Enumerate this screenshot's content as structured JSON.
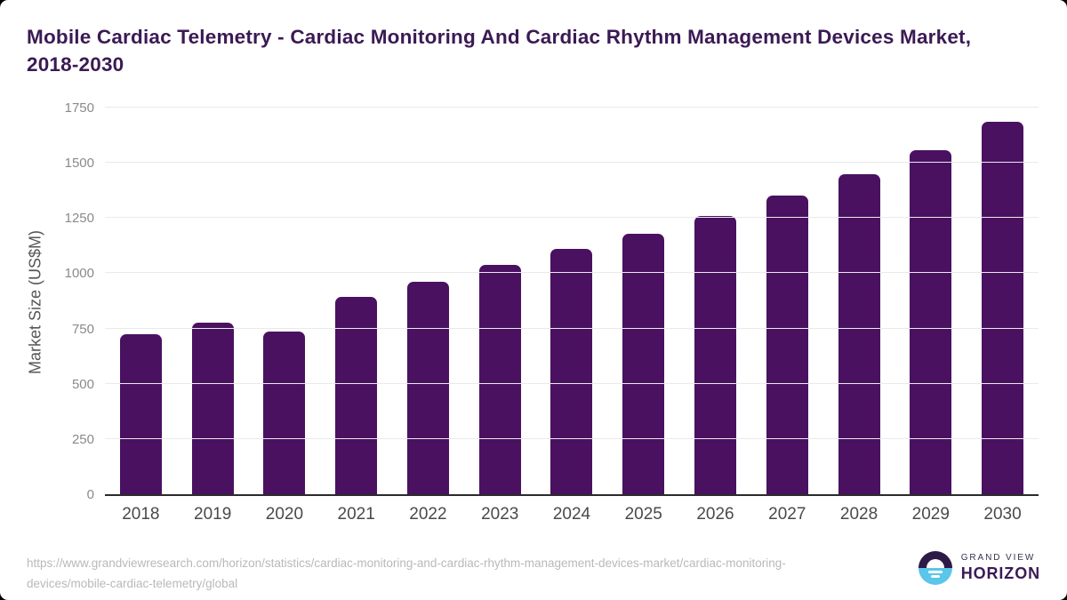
{
  "title": "Mobile Cardiac Telemetry - Cardiac Monitoring And Cardiac Rhythm Management Devices Market, 2018-2030",
  "chart_data": {
    "type": "bar",
    "categories": [
      "2018",
      "2019",
      "2020",
      "2021",
      "2022",
      "2023",
      "2024",
      "2025",
      "2026",
      "2027",
      "2028",
      "2029",
      "2030"
    ],
    "values": [
      725,
      775,
      735,
      895,
      960,
      1040,
      1110,
      1180,
      1260,
      1350,
      1450,
      1555,
      1685
    ],
    "title": "Mobile Cardiac Telemetry - Cardiac Monitoring And Cardiac Rhythm Management Devices Market, 2018-2030",
    "xlabel": "",
    "ylabel": "Market Size (US$M)",
    "yticks": [
      0,
      250,
      500,
      750,
      1000,
      1250,
      1500,
      1750
    ],
    "ylim": [
      0,
      1750
    ],
    "grid": "horizontal-only",
    "legend": "none",
    "bar_color": "#4a1160"
  },
  "colors": {
    "title_text": "#3b1a54",
    "bar": "#4a1160",
    "axis_line": "#2b2b2b",
    "gridline": "#eaeaea",
    "tick_text": "#8a8a8a",
    "x_label_text": "#4a4a4a",
    "source_text": "#b9b9b9",
    "logo_purple": "#2e1a47",
    "logo_blue": "#5ac6e9"
  },
  "footer": {
    "source_url": "https://www.grandviewresearch.com/horizon/statistics/cardiac-monitoring-and-cardiac-rhythm-management-devices-market/cardiac-monitoring-devices/mobile-cardiac-telemetry/global",
    "logo": {
      "top_text": "GRAND VIEW",
      "bottom_text": "HORIZON"
    }
  }
}
